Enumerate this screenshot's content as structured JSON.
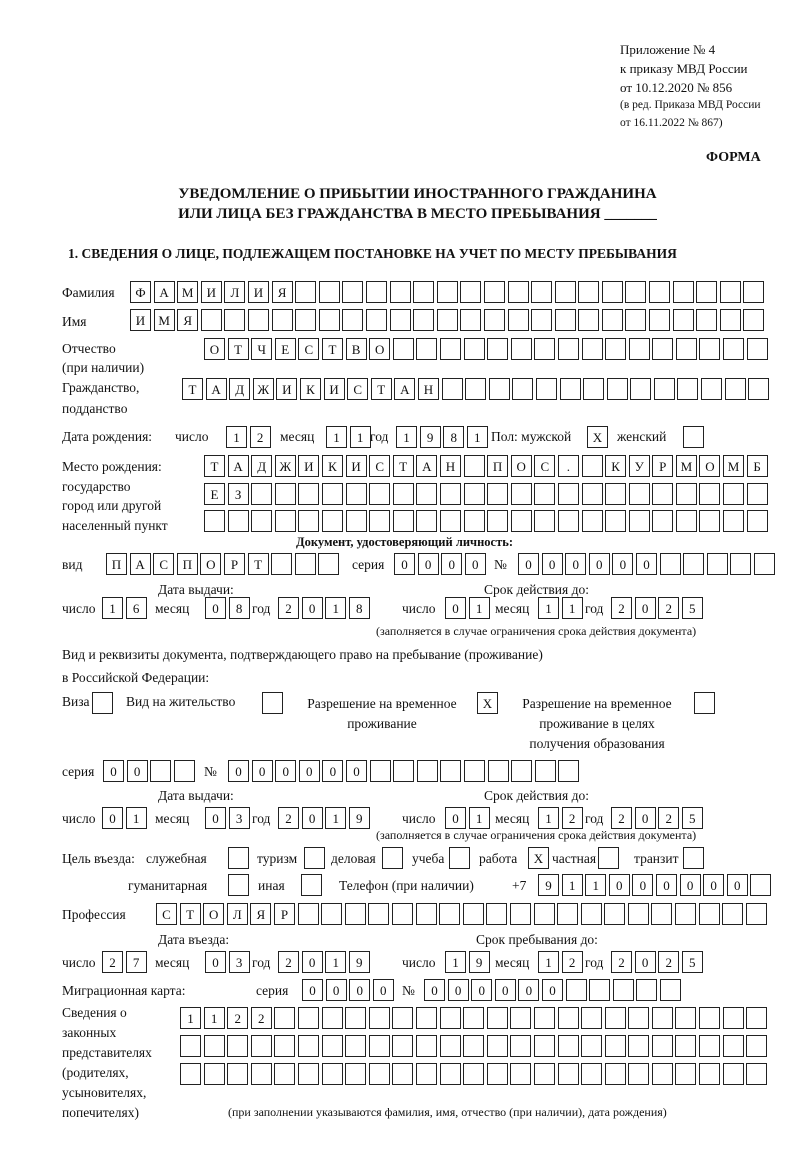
{
  "header": {
    "appendix": [
      "Приложение № 4",
      "к приказу МВД России",
      "от 10.12.2020 № 856"
    ],
    "revision": [
      "(в ред. Приказа МВД России",
      "от 16.11.2022 № 867)"
    ],
    "forma": "ФОРМА",
    "title1": "УВЕДОМЛЕНИЕ О ПРИБЫТИИ ИНОСТРАННОГО ГРАЖДАНИНА",
    "title2": "ИЛИ ЛИЦА БЕЗ ГРАЖДАНСТВА В МЕСТО ПРЕБЫВАНИЯ _______",
    "section1": "1. СВЕДЕНИЯ О ЛИЦЕ, ПОДЛЕЖАЩЕМ ПОСТАНОВКЕ НА УЧЕТ ПО МЕСТУ ПРЕБЫВАНИЯ"
  },
  "person": {
    "surname_label": "Фамилия",
    "surname": "ФАМИЛИЯ",
    "name_label": "Имя",
    "name": "ИМЯ",
    "patronymic_label": "Отчество",
    "patronymic_label2": "(при наличии)",
    "patronymic": "ОТЧЕСТВО",
    "citizenship_label": "Гражданство,",
    "citizenship_label2": "подданство",
    "citizenship": "ТАДЖИКИСТАН",
    "birth_label": "Дата рождения:",
    "day_label": "число",
    "month_label": "месяц",
    "year_label": "год",
    "birth_day": "12",
    "birth_month": "11",
    "birth_year": "1981",
    "sex_label": "Пол: мужской",
    "male": "X",
    "female_label": "женский",
    "female": "",
    "birthplace_labels": [
      "Место рождения:",
      "государство",
      "город или другой",
      "населенный пункт"
    ],
    "birthplace": [
      "ТАДЖИКИСТАН ПОС. КУРМОМБ",
      "ЕЗ",
      ""
    ]
  },
  "identity_doc": {
    "heading": "Документ, удостоверяющий личность:",
    "kind_label": "вид",
    "kind": "ПАСПОРТ",
    "series_label": "серия",
    "series": "0000",
    "number_label": "№",
    "number": "000000",
    "issued_label": "Дата выдачи:",
    "valid_label": "Срок действия до:",
    "issued": {
      "day": "16",
      "month": "08",
      "year": "2018"
    },
    "valid": {
      "day": "01",
      "month": "11",
      "year": "2025"
    },
    "note": "(заполняется в случае ограничения срока действия документа)"
  },
  "stay_doc": {
    "heading1": "Вид и реквизиты документа, подтверждающего право на пребывание (проживание)",
    "heading2": "в Российской Федерации:",
    "options": [
      {
        "label": "Виза",
        "mark": ""
      },
      {
        "label": "Вид на жительство",
        "mark": ""
      },
      {
        "label": "Разрешение на временное",
        "label2": "проживание",
        "mark": "X"
      },
      {
        "label": "Разрешение на временное",
        "label2": "проживание в целях",
        "label3": "получения образования",
        "mark": ""
      }
    ],
    "series": "00",
    "number": "000000",
    "issued": {
      "day": "01",
      "month": "03",
      "year": "2019"
    },
    "valid": {
      "day": "01",
      "month": "12",
      "year": "2025"
    }
  },
  "purpose": {
    "label": "Цель въезда:",
    "options": [
      {
        "label": "служебная",
        "mark": ""
      },
      {
        "label": "туризм",
        "mark": ""
      },
      {
        "label": "деловая",
        "mark": ""
      },
      {
        "label": "учеба",
        "mark": ""
      },
      {
        "label": "работа",
        "mark": "X"
      },
      {
        "label": "частная",
        "mark": ""
      },
      {
        "label": "транзит",
        "mark": ""
      },
      {
        "label": "гуманитарная",
        "mark": ""
      },
      {
        "label": "иная",
        "mark": ""
      }
    ]
  },
  "phone": {
    "label": "Телефон (при наличии)",
    "prefix": "+7",
    "value": "911000000"
  },
  "profession": {
    "label": "Профессия",
    "value": "СТОЛЯР"
  },
  "entry": {
    "entry_label": "Дата въезда:",
    "stay_label": "Срок пребывания до:",
    "entry_date": {
      "day": "27",
      "month": "03",
      "year": "2019"
    },
    "stay_until": {
      "day": "19",
      "month": "12",
      "year": "2025"
    }
  },
  "migration_card": {
    "label": "Миграционная карта:",
    "series": "0000",
    "number": "000000"
  },
  "representatives": {
    "labels": [
      "Сведения о",
      "законных",
      "представителях",
      "(родителях,",
      "усыновителях,",
      "попечителях)"
    ],
    "rows": [
      "1122",
      "",
      ""
    ],
    "note": "(при заполнении указываются фамилия, имя, отчество (при наличии), дата рождения)"
  }
}
